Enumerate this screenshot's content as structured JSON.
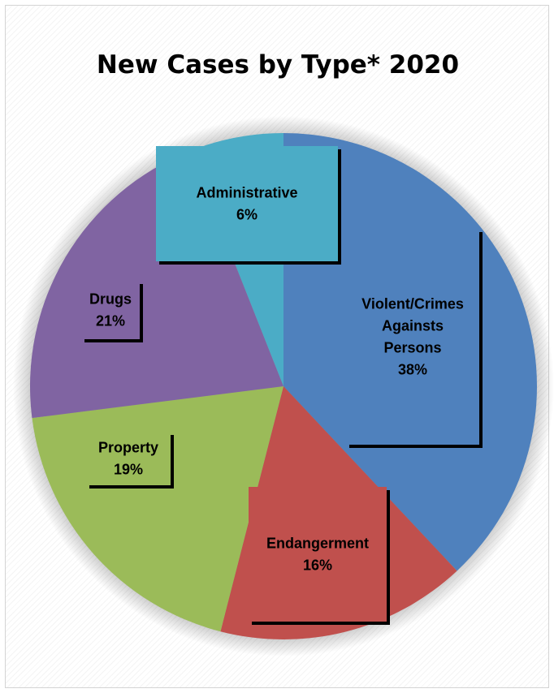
{
  "chart_data": {
    "type": "pie",
    "title": "New Cases by Type* 2020",
    "categories": [
      "Violent/Crimes Againsts Persons",
      "Endangerment",
      "Property",
      "Drugs",
      "Administrative"
    ],
    "values": [
      38,
      16,
      19,
      21,
      6
    ],
    "unit": "%",
    "colors": [
      "#4F81BD",
      "#C0504D",
      "#9BBB59",
      "#8064A2",
      "#4BACC6"
    ],
    "start_angle_deg": 0,
    "direction": "clockwise",
    "legend": "none",
    "data_labels": [
      {
        "lines": [
          "Violent/Crimes",
          "Againsts",
          "Persons",
          "38%"
        ]
      },
      {
        "lines": [
          "Endangerment",
          "16%"
        ]
      },
      {
        "lines": [
          "Property",
          "19%"
        ]
      },
      {
        "lines": [
          "Drugs",
          "21%"
        ]
      },
      {
        "lines": [
          "Administrative",
          "6%"
        ]
      }
    ]
  }
}
